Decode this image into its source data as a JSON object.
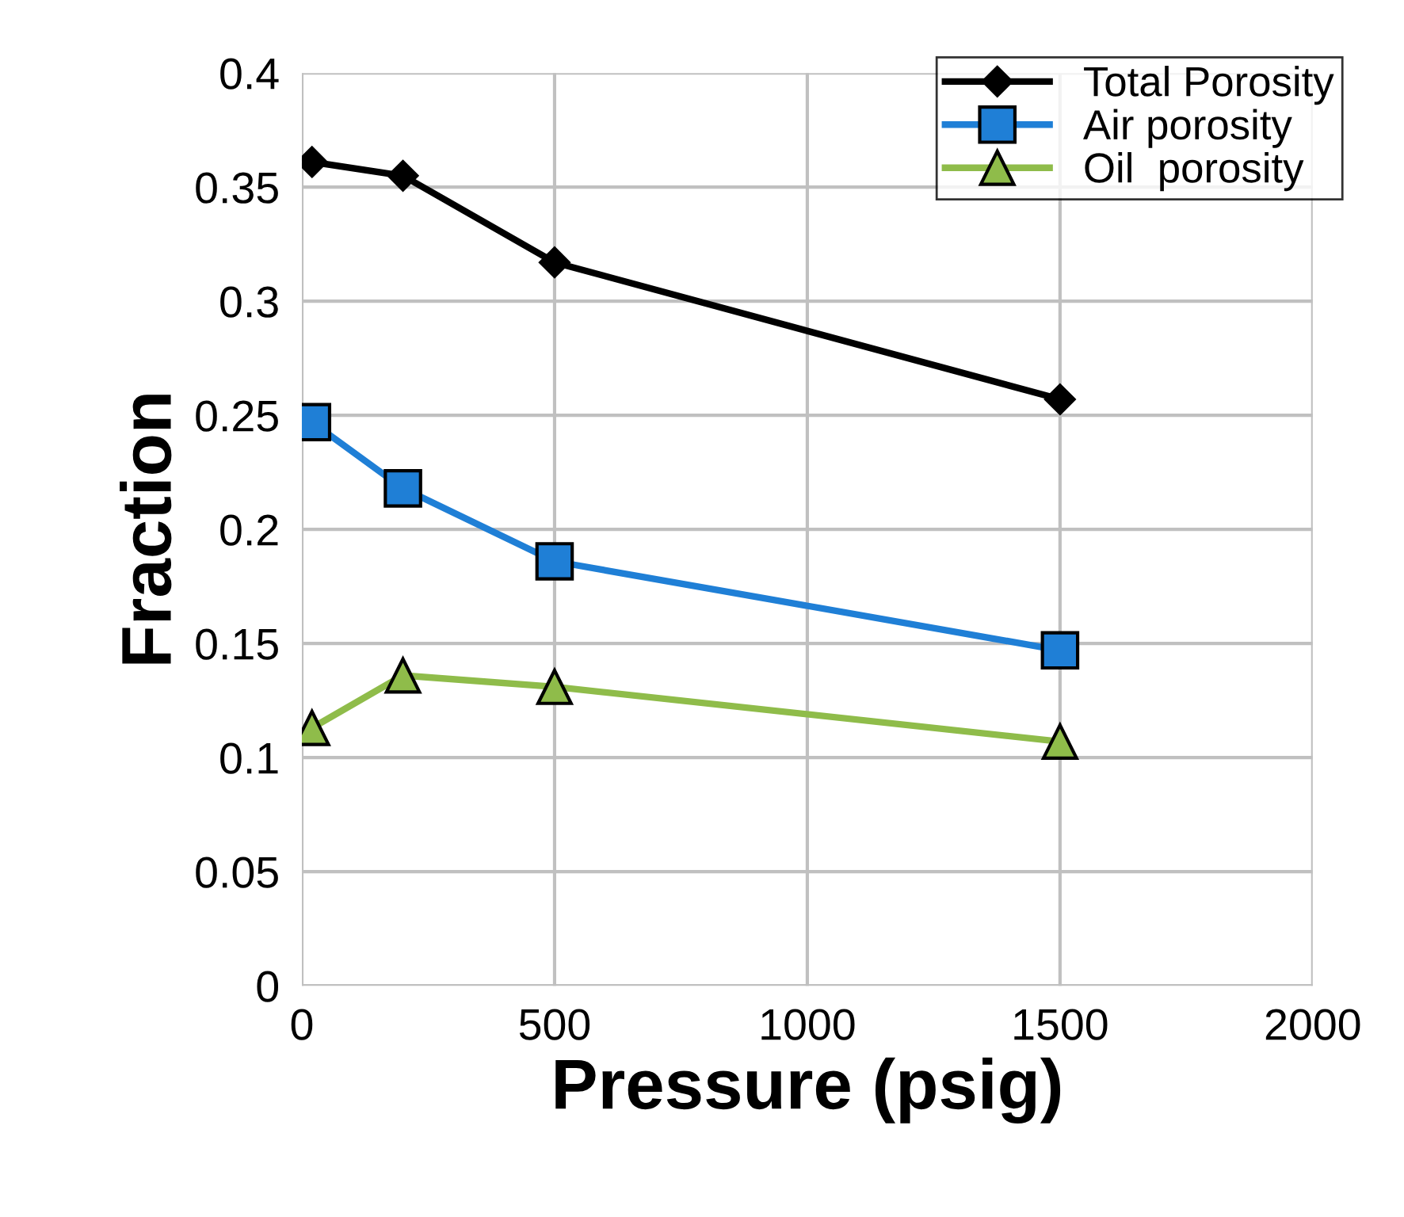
{
  "chart_data": {
    "type": "line",
    "xlabel": "Pressure (psig)",
    "ylabel": "Fraction",
    "x": [
      20,
      200,
      500,
      1500
    ],
    "series": [
      {
        "name": "Total Porosity",
        "color": "#000000",
        "marker": "diamond",
        "values": [
          0.361,
          0.355,
          0.317,
          0.257
        ]
      },
      {
        "name": "Air porosity",
        "color": "#1f7fd6",
        "marker": "square",
        "values": [
          0.247,
          0.218,
          0.186,
          0.147
        ]
      },
      {
        "name": "Oil  porosity",
        "color": "#8fbc4a",
        "marker": "triangle",
        "values": [
          0.113,
          0.136,
          0.131,
          0.107
        ]
      }
    ],
    "xlim": [
      0,
      2000
    ],
    "xticks": [
      0,
      500,
      1000,
      1500,
      2000
    ],
    "ylim": [
      0,
      0.4
    ],
    "yticks": [
      {
        "value": 0,
        "label": "0"
      },
      0.05,
      {
        "value": 0.1,
        "label": "0.1"
      },
      0.15,
      {
        "value": 0.2,
        "label": "0.2"
      },
      0.25,
      {
        "value": 0.3,
        "label": "0.3"
      },
      0.35,
      {
        "value": 0.4,
        "label": "0.4"
      }
    ],
    "grid": true,
    "legend": "top right",
    "line_style": "solid"
  }
}
